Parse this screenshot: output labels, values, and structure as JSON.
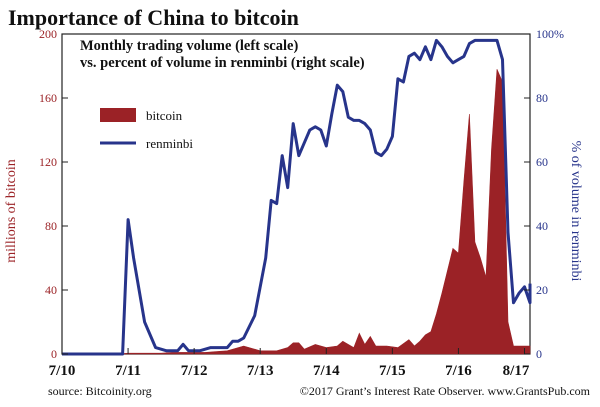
{
  "title": "Importance of China to bitcoin",
  "subtitle_line1": "Monthly trading volume (left scale)",
  "subtitle_line2": "vs. percent of volume in renminbi (right scale)",
  "source": "source: Bitcoinity.org",
  "credit": "©2017 Grant’s Interest Rate Observer. www.GrantsPub.com",
  "colors": {
    "bitcoin": "#9b2226",
    "renminbi": "#27348b",
    "left_axis": "#9b2226",
    "right_axis": "#27348b"
  },
  "chart_data": {
    "type": "area",
    "title": "Importance of China to bitcoin",
    "left_axis": {
      "label": "millions of bitcoin",
      "range": [
        0,
        200
      ],
      "ticks": [
        "0",
        "40",
        "80",
        "120",
        "160",
        "200"
      ]
    },
    "right_axis": {
      "label": "% of volume in renminbi",
      "range": [
        0,
        100
      ],
      "ticks": [
        "0",
        "20",
        "40",
        "60",
        "80",
        "100%"
      ]
    },
    "x_axis": {
      "range": [
        "2010-07",
        "2017-08"
      ],
      "ticks": [
        "7/10",
        "7/11",
        "7/12",
        "7/13",
        "7/14",
        "7/15",
        "7/16",
        "8/17"
      ]
    },
    "legend": [
      "bitcoin",
      "renminbi"
    ],
    "series": [
      {
        "name": "bitcoin",
        "type": "area",
        "axis": "left",
        "points": [
          [
            "2010-07",
            0
          ],
          [
            "2011-05",
            0
          ],
          [
            "2011-07",
            0.5
          ],
          [
            "2011-09",
            0.5
          ],
          [
            "2012-01",
            0.5
          ],
          [
            "2012-03",
            1
          ],
          [
            "2012-06",
            1
          ],
          [
            "2012-09",
            1
          ],
          [
            "2012-11",
            1.5
          ],
          [
            "2013-01",
            2
          ],
          [
            "2013-04",
            5
          ],
          [
            "2013-07",
            2
          ],
          [
            "2013-10",
            2
          ],
          [
            "2013-12",
            4
          ],
          [
            "2014-01",
            7
          ],
          [
            "2014-02",
            7
          ],
          [
            "2014-03",
            3
          ],
          [
            "2014-05",
            6
          ],
          [
            "2014-07",
            4
          ],
          [
            "2014-09",
            5
          ],
          [
            "2014-10",
            8
          ],
          [
            "2014-12",
            4
          ],
          [
            "2015-01",
            13
          ],
          [
            "2015-02",
            6
          ],
          [
            "2015-03",
            11
          ],
          [
            "2015-04",
            5
          ],
          [
            "2015-06",
            5
          ],
          [
            "2015-08",
            4
          ],
          [
            "2015-10",
            9
          ],
          [
            "2015-11",
            5
          ],
          [
            "2015-12",
            8
          ],
          [
            "2016-01",
            12
          ],
          [
            "2016-02",
            14
          ],
          [
            "2016-03",
            25
          ],
          [
            "2016-04",
            38
          ],
          [
            "2016-05",
            52
          ],
          [
            "2016-06",
            66
          ],
          [
            "2016-07",
            63
          ],
          [
            "2016-08",
            108
          ],
          [
            "2016-09",
            150
          ],
          [
            "2016-10",
            70
          ],
          [
            "2016-11",
            60
          ],
          [
            "2016-12",
            48
          ],
          [
            "2017-01",
            128
          ],
          [
            "2017-02",
            178
          ],
          [
            "2017-03",
            170
          ],
          [
            "2017-04",
            20
          ],
          [
            "2017-05",
            5
          ],
          [
            "2017-08",
            5
          ]
        ]
      },
      {
        "name": "renminbi",
        "type": "line",
        "axis": "right",
        "points": [
          [
            "2010-07",
            0
          ],
          [
            "2011-06",
            0
          ],
          [
            "2011-07",
            42
          ],
          [
            "2011-08",
            30
          ],
          [
            "2011-10",
            10
          ],
          [
            "2011-12",
            2
          ],
          [
            "2012-02",
            1
          ],
          [
            "2012-04",
            1
          ],
          [
            "2012-05",
            3
          ],
          [
            "2012-06",
            1
          ],
          [
            "2012-08",
            1
          ],
          [
            "2012-10",
            2
          ],
          [
            "2013-01",
            2
          ],
          [
            "2013-02",
            4
          ],
          [
            "2013-03",
            4
          ],
          [
            "2013-04",
            5
          ],
          [
            "2013-06",
            12
          ],
          [
            "2013-08",
            30
          ],
          [
            "2013-09",
            48
          ],
          [
            "2013-10",
            47
          ],
          [
            "2013-11",
            62
          ],
          [
            "2013-12",
            52
          ],
          [
            "2014-01",
            72
          ],
          [
            "2014-02",
            62
          ],
          [
            "2014-03",
            66
          ],
          [
            "2014-04",
            70
          ],
          [
            "2014-05",
            71
          ],
          [
            "2014-06",
            70
          ],
          [
            "2014-07",
            65
          ],
          [
            "2014-08",
            75
          ],
          [
            "2014-09",
            84
          ],
          [
            "2014-10",
            82
          ],
          [
            "2014-11",
            74
          ],
          [
            "2014-12",
            73
          ],
          [
            "2015-01",
            73
          ],
          [
            "2015-02",
            72
          ],
          [
            "2015-03",
            70
          ],
          [
            "2015-04",
            63
          ],
          [
            "2015-05",
            62
          ],
          [
            "2015-06",
            64
          ],
          [
            "2015-07",
            68
          ],
          [
            "2015-08",
            86
          ],
          [
            "2015-09",
            85
          ],
          [
            "2015-10",
            93
          ],
          [
            "2015-11",
            94
          ],
          [
            "2015-12",
            92
          ],
          [
            "2016-01",
            96
          ],
          [
            "2016-02",
            92
          ],
          [
            "2016-03",
            98
          ],
          [
            "2016-04",
            96
          ],
          [
            "2016-05",
            93
          ],
          [
            "2016-06",
            91
          ],
          [
            "2016-07",
            92
          ],
          [
            "2016-08",
            93
          ],
          [
            "2016-09",
            97
          ],
          [
            "2016-10",
            98
          ],
          [
            "2016-11",
            98
          ],
          [
            "2017-01",
            98
          ],
          [
            "2017-02",
            98
          ],
          [
            "2017-03",
            92
          ],
          [
            "2017-04",
            38
          ],
          [
            "2017-05",
            16
          ],
          [
            "2017-06",
            19
          ],
          [
            "2017-07",
            21
          ],
          [
            "2017-08",
            16
          ],
          [
            "2017-08",
            22
          ]
        ]
      }
    ]
  }
}
